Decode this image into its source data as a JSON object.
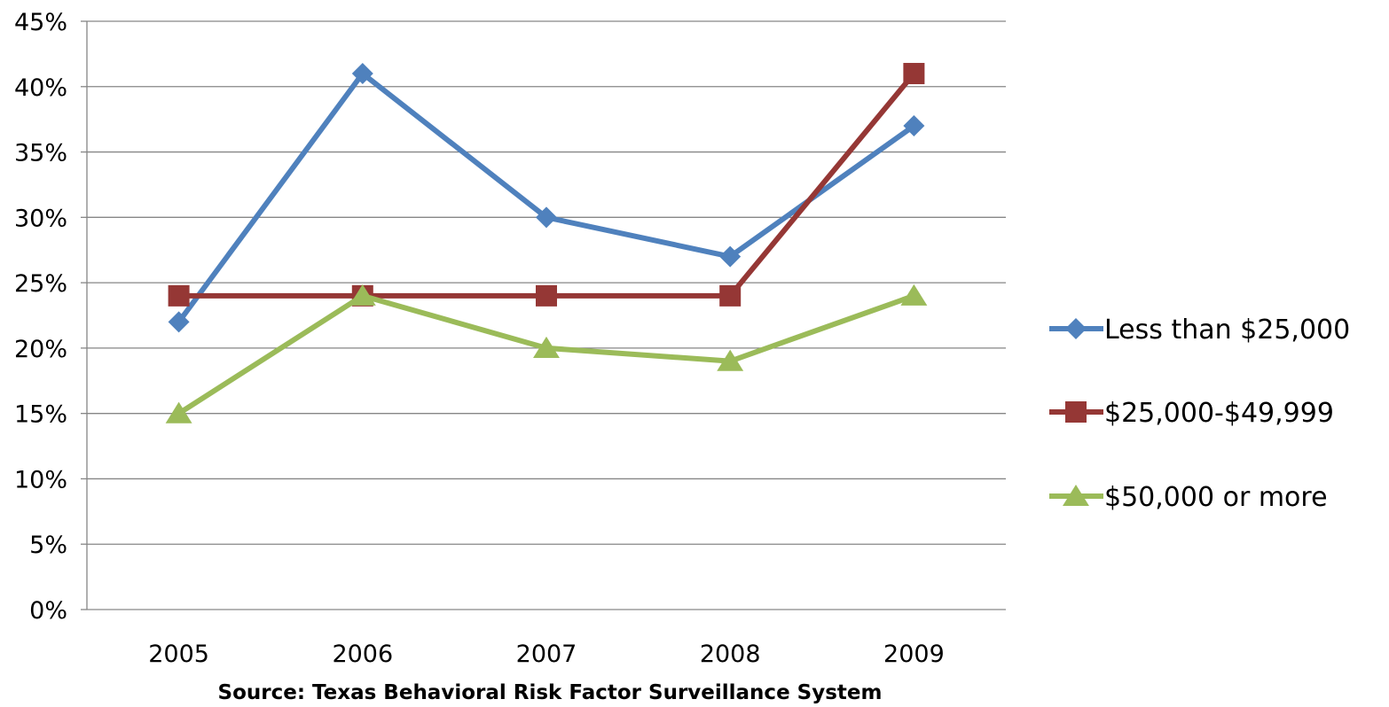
{
  "chart_data": {
    "type": "line",
    "title": "",
    "xlabel": "Source: Texas Behavioral Risk Factor Surveillance System",
    "ylabel": "",
    "categories": [
      "2005",
      "2006",
      "2007",
      "2008",
      "2009"
    ],
    "ylim": [
      0,
      45
    ],
    "ytick_step": 5,
    "y_tick_labels": [
      "0%",
      "5%",
      "10%",
      "15%",
      "20%",
      "25%",
      "30%",
      "35%",
      "40%",
      "45%"
    ],
    "grid": true,
    "legend_position": "right",
    "series": [
      {
        "name": "Less than $25,000",
        "values": [
          22,
          41,
          30,
          27,
          37
        ],
        "color": "#4F81BD",
        "marker": "diamond"
      },
      {
        "name": "$25,000-$49,999",
        "values": [
          24,
          24,
          24,
          24,
          41
        ],
        "color": "#953735",
        "marker": "square"
      },
      {
        "name": "$50,000 or more",
        "values": [
          15,
          24,
          20,
          19,
          24
        ],
        "color": "#9BBB59",
        "marker": "triangle"
      }
    ]
  }
}
